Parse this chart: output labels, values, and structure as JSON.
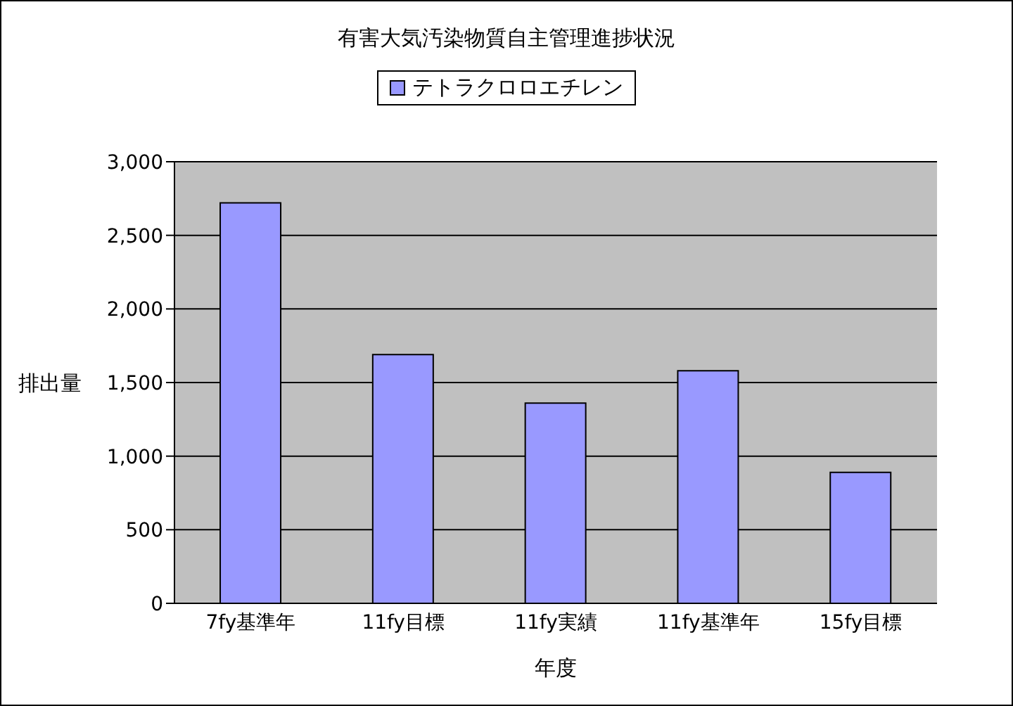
{
  "chart_data": {
    "type": "bar",
    "title": "有害大気汚染物質自主管理進捗状況",
    "xlabel": "年度",
    "ylabel": "排出量",
    "categories": [
      "7fy基準年",
      "11fy目標",
      "11fy実績",
      "11fy基準年",
      "15fy目標"
    ],
    "series": [
      {
        "name": "テトラクロロエチレン",
        "color": "#9999ff",
        "values": [
          2720,
          1690,
          1360,
          1580,
          890
        ]
      }
    ],
    "ylim": [
      0,
      3000
    ],
    "yticks": [
      0,
      500,
      {
        "value": 1000,
        "label": "1,000"
      },
      {
        "value": 1500,
        "label": "1,500"
      },
      {
        "value": 2000,
        "label": "2,000"
      },
      {
        "value": 2500,
        "label": "2,500"
      },
      {
        "value": 3000,
        "label": "3,000"
      }
    ],
    "grid": "y",
    "legend": "top"
  }
}
